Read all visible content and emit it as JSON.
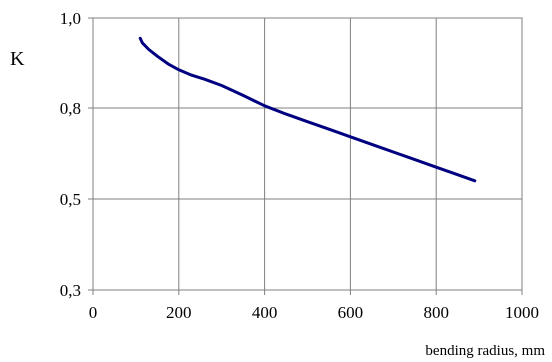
{
  "chart_data": {
    "type": "line",
    "title": "",
    "xlabel": "bending radius, mm",
    "ylabel": "K",
    "xlim": [
      0,
      1000
    ],
    "ylim": [
      0.3,
      1.0
    ],
    "grid": true,
    "x_ticks": [
      0,
      200,
      400,
      600,
      800,
      1000
    ],
    "x_tick_labels": [
      "0",
      "200",
      "400",
      "600",
      "800",
      "1000"
    ],
    "y_ticks": [
      0.3,
      0.5,
      0.8,
      1.0
    ],
    "y_tick_labels": [
      "0,3",
      "0,5",
      "0,8",
      "1,0"
    ],
    "line_color": "#000080",
    "series": [
      {
        "x": [
          110,
          115,
          130,
          150,
          175,
          200,
          230,
          260,
          300,
          350,
          400,
          450,
          500,
          550,
          600,
          650,
          700,
          750,
          800,
          850,
          890
        ],
        "y": [
          0.955,
          0.945,
          0.93,
          0.915,
          0.898,
          0.885,
          0.873,
          0.864,
          0.85,
          0.828,
          0.805,
          0.78,
          0.755,
          0.73,
          0.705,
          0.68,
          0.655,
          0.63,
          0.605,
          0.58,
          0.56
        ]
      }
    ]
  }
}
